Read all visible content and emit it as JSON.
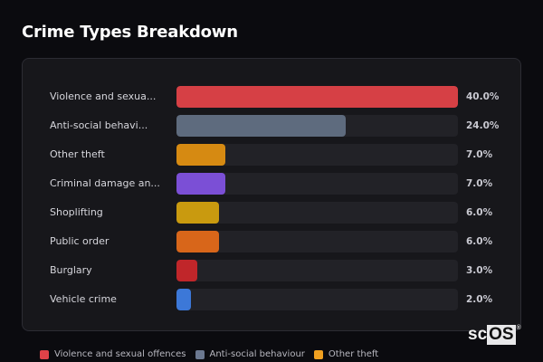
{
  "header": {
    "title": "Crime Types Breakdown"
  },
  "chart_data": {
    "type": "bar",
    "orientation": "horizontal",
    "title": "Crime Types Breakdown",
    "xlabel": "",
    "ylabel": "",
    "scale_max": 40.0,
    "unit": "%",
    "grid": false,
    "legend_position": "bottom",
    "categories": [
      "Violence and sexual offences",
      "Anti-social behaviour",
      "Other theft",
      "Criminal damage and arson",
      "Shoplifting",
      "Public order",
      "Burglary",
      "Vehicle crime"
    ],
    "display_labels": [
      "Violence and sexua...",
      "Anti-social behavi...",
      "Other theft",
      "Criminal damage an...",
      "Shoplifting",
      "Public order",
      "Burglary",
      "Vehicle crime"
    ],
    "values": [
      40.0,
      24.0,
      7.0,
      7.0,
      6.0,
      6.0,
      3.0,
      2.0
    ],
    "value_labels": [
      "40.0%",
      "24.0%",
      "7.0%",
      "7.0%",
      "6.0%",
      "6.0%",
      "3.0%",
      "2.0%"
    ],
    "colors": [
      "#d64045",
      "#5e6b7e",
      "#d68a12",
      "#7b4fd6",
      "#c99a0f",
      "#d8661a",
      "#c0262a",
      "#3c78d8"
    ]
  },
  "legend": {
    "items": [
      {
        "label": "Violence and sexual offences",
        "color": "#e04248"
      },
      {
        "label": "Anti-social behaviour",
        "color": "#6b7890"
      },
      {
        "label": "Other theft",
        "color": "#f0a020"
      }
    ]
  },
  "watermark": {
    "sc": "sc",
    "os": "OS",
    "reg": "®"
  }
}
